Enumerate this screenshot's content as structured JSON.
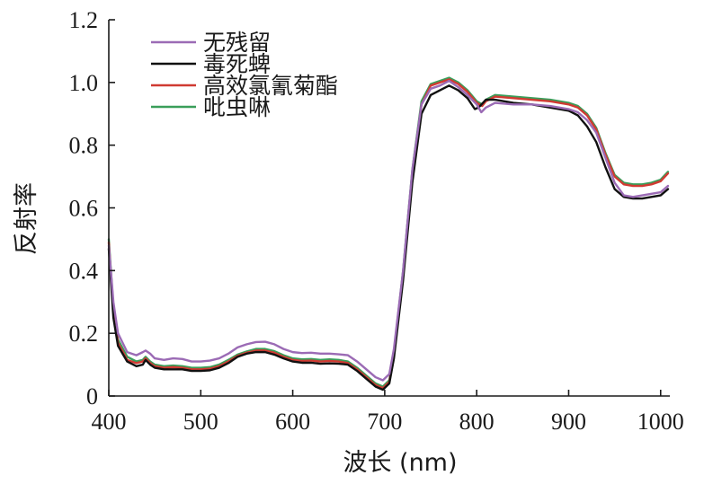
{
  "chart_data": {
    "type": "line",
    "xlabel": "波长 (nm)",
    "ylabel": "反射率",
    "xlim": [
      400,
      1010
    ],
    "ylim": [
      0,
      1.2
    ],
    "x_ticks": [
      400,
      500,
      600,
      700,
      800,
      900,
      1000
    ],
    "x_tick_labels": [
      "400",
      "500",
      "600",
      "700",
      "800",
      "900",
      "1000"
    ],
    "y_ticks": [
      0,
      0.2,
      0.4,
      0.6,
      0.8,
      1.0,
      1.2
    ],
    "y_tick_labels": [
      "0",
      "0.2",
      "0.4",
      "0.6",
      "0.8",
      "1.0",
      "1.2"
    ],
    "grid": false,
    "legend_position": "top-left",
    "series": [
      {
        "name": "无残留",
        "color": "#9b6bb5",
        "points": [
          [
            400,
            0.48
          ],
          [
            405,
            0.3
          ],
          [
            410,
            0.2
          ],
          [
            420,
            0.14
          ],
          [
            430,
            0.13
          ],
          [
            437,
            0.14
          ],
          [
            440,
            0.145
          ],
          [
            445,
            0.135
          ],
          [
            450,
            0.12
          ],
          [
            460,
            0.115
          ],
          [
            470,
            0.12
          ],
          [
            480,
            0.118
          ],
          [
            490,
            0.11
          ],
          [
            500,
            0.11
          ],
          [
            510,
            0.113
          ],
          [
            520,
            0.12
          ],
          [
            530,
            0.135
          ],
          [
            540,
            0.155
          ],
          [
            550,
            0.165
          ],
          [
            560,
            0.172
          ],
          [
            570,
            0.173
          ],
          [
            580,
            0.165
          ],
          [
            590,
            0.15
          ],
          [
            600,
            0.14
          ],
          [
            610,
            0.137
          ],
          [
            620,
            0.138
          ],
          [
            630,
            0.135
          ],
          [
            640,
            0.135
          ],
          [
            650,
            0.133
          ],
          [
            660,
            0.13
          ],
          [
            670,
            0.11
          ],
          [
            680,
            0.085
          ],
          [
            690,
            0.06
          ],
          [
            698,
            0.05
          ],
          [
            705,
            0.07
          ],
          [
            710,
            0.15
          ],
          [
            720,
            0.4
          ],
          [
            730,
            0.72
          ],
          [
            740,
            0.93
          ],
          [
            750,
            0.98
          ],
          [
            760,
            0.99
          ],
          [
            770,
            1.005
          ],
          [
            780,
            0.985
          ],
          [
            790,
            0.96
          ],
          [
            800,
            0.93
          ],
          [
            805,
            0.905
          ],
          [
            810,
            0.92
          ],
          [
            820,
            0.935
          ],
          [
            840,
            0.93
          ],
          [
            860,
            0.93
          ],
          [
            880,
            0.925
          ],
          [
            900,
            0.915
          ],
          [
            910,
            0.905
          ],
          [
            920,
            0.88
          ],
          [
            930,
            0.84
          ],
          [
            940,
            0.76
          ],
          [
            950,
            0.68
          ],
          [
            960,
            0.64
          ],
          [
            970,
            0.635
          ],
          [
            980,
            0.64
          ],
          [
            990,
            0.645
          ],
          [
            1000,
            0.65
          ],
          [
            1008,
            0.67
          ]
        ]
      },
      {
        "name": "毒死蜱",
        "color": "#111111",
        "points": [
          [
            400,
            0.47
          ],
          [
            405,
            0.25
          ],
          [
            410,
            0.16
          ],
          [
            420,
            0.11
          ],
          [
            430,
            0.095
          ],
          [
            437,
            0.1
          ],
          [
            440,
            0.115
          ],
          [
            445,
            0.1
          ],
          [
            450,
            0.09
          ],
          [
            460,
            0.085
          ],
          [
            470,
            0.085
          ],
          [
            480,
            0.085
          ],
          [
            490,
            0.08
          ],
          [
            500,
            0.08
          ],
          [
            510,
            0.082
          ],
          [
            520,
            0.09
          ],
          [
            530,
            0.105
          ],
          [
            540,
            0.125
          ],
          [
            550,
            0.135
          ],
          [
            560,
            0.14
          ],
          [
            570,
            0.14
          ],
          [
            580,
            0.132
          ],
          [
            590,
            0.12
          ],
          [
            600,
            0.11
          ],
          [
            610,
            0.106
          ],
          [
            620,
            0.106
          ],
          [
            630,
            0.103
          ],
          [
            640,
            0.104
          ],
          [
            650,
            0.103
          ],
          [
            660,
            0.1
          ],
          [
            670,
            0.08
          ],
          [
            680,
            0.055
          ],
          [
            690,
            0.03
          ],
          [
            698,
            0.02
          ],
          [
            705,
            0.04
          ],
          [
            710,
            0.12
          ],
          [
            720,
            0.37
          ],
          [
            730,
            0.68
          ],
          [
            740,
            0.9
          ],
          [
            750,
            0.96
          ],
          [
            760,
            0.975
          ],
          [
            770,
            0.99
          ],
          [
            780,
            0.975
          ],
          [
            790,
            0.95
          ],
          [
            798,
            0.915
          ],
          [
            802,
            0.92
          ],
          [
            810,
            0.945
          ],
          [
            820,
            0.945
          ],
          [
            840,
            0.935
          ],
          [
            860,
            0.93
          ],
          [
            880,
            0.92
          ],
          [
            900,
            0.91
          ],
          [
            910,
            0.895
          ],
          [
            920,
            0.86
          ],
          [
            930,
            0.81
          ],
          [
            940,
            0.73
          ],
          [
            950,
            0.66
          ],
          [
            960,
            0.635
          ],
          [
            970,
            0.63
          ],
          [
            980,
            0.63
          ],
          [
            990,
            0.635
          ],
          [
            1000,
            0.64
          ],
          [
            1008,
            0.66
          ]
        ]
      },
      {
        "name": "高效氯氰菊酯",
        "color": "#d03a32",
        "points": [
          [
            400,
            0.49
          ],
          [
            405,
            0.27
          ],
          [
            410,
            0.17
          ],
          [
            420,
            0.115
          ],
          [
            430,
            0.105
          ],
          [
            437,
            0.11
          ],
          [
            440,
            0.12
          ],
          [
            445,
            0.105
          ],
          [
            450,
            0.095
          ],
          [
            460,
            0.09
          ],
          [
            470,
            0.092
          ],
          [
            480,
            0.09
          ],
          [
            490,
            0.085
          ],
          [
            500,
            0.085
          ],
          [
            510,
            0.087
          ],
          [
            520,
            0.095
          ],
          [
            530,
            0.11
          ],
          [
            540,
            0.128
          ],
          [
            550,
            0.138
          ],
          [
            560,
            0.145
          ],
          [
            570,
            0.145
          ],
          [
            580,
            0.138
          ],
          [
            590,
            0.125
          ],
          [
            600,
            0.115
          ],
          [
            610,
            0.112
          ],
          [
            620,
            0.113
          ],
          [
            630,
            0.11
          ],
          [
            640,
            0.112
          ],
          [
            650,
            0.11
          ],
          [
            660,
            0.105
          ],
          [
            670,
            0.085
          ],
          [
            680,
            0.06
          ],
          [
            690,
            0.035
          ],
          [
            698,
            0.025
          ],
          [
            705,
            0.045
          ],
          [
            710,
            0.13
          ],
          [
            720,
            0.39
          ],
          [
            730,
            0.71
          ],
          [
            740,
            0.93
          ],
          [
            750,
            0.99
          ],
          [
            760,
            1.0
          ],
          [
            770,
            1.01
          ],
          [
            780,
            0.995
          ],
          [
            790,
            0.97
          ],
          [
            800,
            0.935
          ],
          [
            806,
            0.925
          ],
          [
            810,
            0.94
          ],
          [
            820,
            0.955
          ],
          [
            840,
            0.95
          ],
          [
            860,
            0.945
          ],
          [
            880,
            0.94
          ],
          [
            900,
            0.93
          ],
          [
            910,
            0.92
          ],
          [
            920,
            0.895
          ],
          [
            930,
            0.85
          ],
          [
            940,
            0.77
          ],
          [
            950,
            0.7
          ],
          [
            960,
            0.675
          ],
          [
            970,
            0.67
          ],
          [
            980,
            0.67
          ],
          [
            990,
            0.675
          ],
          [
            1000,
            0.685
          ],
          [
            1008,
            0.71
          ]
        ]
      },
      {
        "name": "吡虫啉",
        "color": "#3a9e5a",
        "points": [
          [
            400,
            0.5
          ],
          [
            405,
            0.28
          ],
          [
            410,
            0.18
          ],
          [
            420,
            0.125
          ],
          [
            430,
            0.11
          ],
          [
            437,
            0.115
          ],
          [
            440,
            0.125
          ],
          [
            445,
            0.11
          ],
          [
            450,
            0.1
          ],
          [
            460,
            0.095
          ],
          [
            470,
            0.097
          ],
          [
            480,
            0.095
          ],
          [
            490,
            0.09
          ],
          [
            500,
            0.09
          ],
          [
            510,
            0.092
          ],
          [
            520,
            0.1
          ],
          [
            530,
            0.115
          ],
          [
            540,
            0.132
          ],
          [
            550,
            0.142
          ],
          [
            560,
            0.15
          ],
          [
            570,
            0.15
          ],
          [
            580,
            0.143
          ],
          [
            590,
            0.13
          ],
          [
            600,
            0.12
          ],
          [
            610,
            0.117
          ],
          [
            620,
            0.118
          ],
          [
            630,
            0.115
          ],
          [
            640,
            0.117
          ],
          [
            650,
            0.115
          ],
          [
            660,
            0.11
          ],
          [
            670,
            0.09
          ],
          [
            680,
            0.065
          ],
          [
            690,
            0.04
          ],
          [
            698,
            0.03
          ],
          [
            705,
            0.05
          ],
          [
            710,
            0.14
          ],
          [
            720,
            0.4
          ],
          [
            730,
            0.72
          ],
          [
            740,
            0.94
          ],
          [
            750,
            0.995
          ],
          [
            760,
            1.005
          ],
          [
            770,
            1.015
          ],
          [
            780,
            1.0
          ],
          [
            790,
            0.975
          ],
          [
            800,
            0.94
          ],
          [
            806,
            0.93
          ],
          [
            810,
            0.945
          ],
          [
            820,
            0.96
          ],
          [
            840,
            0.955
          ],
          [
            860,
            0.95
          ],
          [
            880,
            0.945
          ],
          [
            900,
            0.935
          ],
          [
            910,
            0.925
          ],
          [
            920,
            0.9
          ],
          [
            930,
            0.855
          ],
          [
            940,
            0.775
          ],
          [
            950,
            0.705
          ],
          [
            960,
            0.68
          ],
          [
            970,
            0.675
          ],
          [
            980,
            0.675
          ],
          [
            990,
            0.68
          ],
          [
            1000,
            0.69
          ],
          [
            1008,
            0.715
          ]
        ]
      }
    ]
  }
}
